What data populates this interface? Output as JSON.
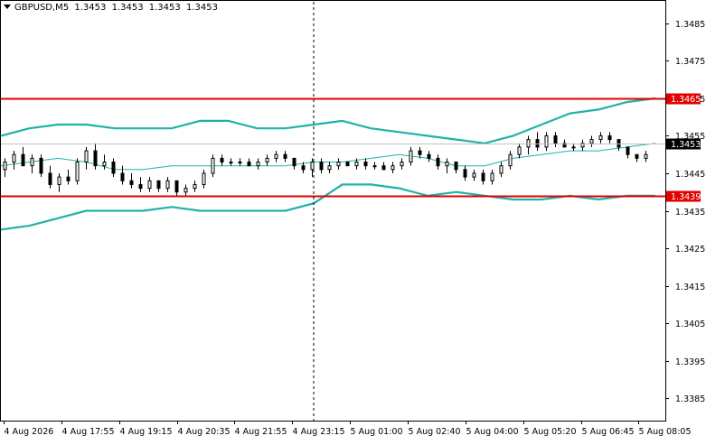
{
  "header": {
    "symbol": "GBPUSD,M5",
    "open": "1.3453",
    "high": "1.3453",
    "low": "1.3453",
    "close": "1.3453"
  },
  "colors": {
    "background": "#ffffff",
    "frame": "#000000",
    "grid": "#d7d7d7",
    "bollinger": "#20b2aa",
    "level_line": "#e00000",
    "candle": "#000000",
    "price_tag_bg": "#000000"
  },
  "chart_data": {
    "type": "candlestick",
    "title": "GBPUSD,M5",
    "price_axis_labels": [
      "1.3485",
      "1.3475",
      "1.3465",
      "1.3455",
      "1.3445",
      "1.3435",
      "1.3425",
      "1.3415",
      "1.3405",
      "1.3395",
      "1.3385"
    ],
    "ylim": [
      1.3379,
      1.3491
    ],
    "time_axis_labels": [
      "4 Aug 2026",
      "4 Aug 17:55",
      "4 Aug 19:15",
      "4 Aug 20:35",
      "4 Aug 21:55",
      "4 Aug 23:15",
      "5 Aug 01:00",
      "5 Aug 02:40",
      "5 Aug 04:00",
      "5 Aug 05:20",
      "5 Aug 06:45",
      "5 Aug 08:05"
    ],
    "grid": false,
    "levels": [
      {
        "label": "1.3465",
        "price": 1.3465
      },
      {
        "label": "1.3439",
        "price": 1.3439
      }
    ],
    "current_price": {
      "label": "1.3453",
      "price": 1.3453
    },
    "bollinger_bands": {
      "upper": [
        1.3455,
        1.3457,
        1.3458,
        1.3458,
        1.3457,
        1.3457,
        1.3457,
        1.3459,
        1.3459,
        1.3457,
        1.3457,
        1.3458,
        1.3459,
        1.3457,
        1.3456,
        1.3455,
        1.3454,
        1.3453,
        1.3455,
        1.3458,
        1.3461,
        1.3462,
        1.3464,
        1.3465
      ],
      "middle": [
        1.3447,
        1.3448,
        1.3449,
        1.3448,
        1.3446,
        1.3446,
        1.3447,
        1.3447,
        1.3447,
        1.3447,
        1.3447,
        1.3448,
        1.3448,
        1.3449,
        1.345,
        1.3449,
        1.3447,
        1.3447,
        1.3449,
        1.345,
        1.3451,
        1.3451,
        1.3452,
        1.3453
      ],
      "lower": [
        1.343,
        1.3431,
        1.3433,
        1.3435,
        1.3435,
        1.3435,
        1.3436,
        1.3435,
        1.3435,
        1.3435,
        1.3435,
        1.3437,
        1.3442,
        1.3442,
        1.3441,
        1.3439,
        1.344,
        1.3439,
        1.3438,
        1.3438,
        1.3439,
        1.3438,
        1.3439,
        1.3439
      ]
    },
    "candles": [
      [
        1.3446,
        1.3449,
        1.3444,
        1.3448
      ],
      [
        1.3448,
        1.3451,
        1.3446,
        1.345
      ],
      [
        1.345,
        1.3452,
        1.3447,
        1.3447
      ],
      [
        1.3447,
        1.345,
        1.3445,
        1.3449
      ],
      [
        1.3449,
        1.345,
        1.3444,
        1.3445
      ],
      [
        1.3445,
        1.3447,
        1.3441,
        1.3442
      ],
      [
        1.3442,
        1.3445,
        1.344,
        1.3444
      ],
      [
        1.3444,
        1.3446,
        1.3442,
        1.3443
      ],
      [
        1.3443,
        1.3449,
        1.3442,
        1.3448
      ],
      [
        1.3448,
        1.3452,
        1.3446,
        1.3451
      ],
      [
        1.3451,
        1.3453,
        1.3446,
        1.3447
      ],
      [
        1.3447,
        1.345,
        1.3446,
        1.3448
      ],
      [
        1.3448,
        1.3449,
        1.3444,
        1.3445
      ],
      [
        1.3445,
        1.3447,
        1.3442,
        1.3443
      ],
      [
        1.3443,
        1.3445,
        1.3441,
        1.3442
      ],
      [
        1.3442,
        1.3444,
        1.344,
        1.3441
      ],
      [
        1.3441,
        1.3444,
        1.344,
        1.3443
      ],
      [
        1.3443,
        1.3443,
        1.344,
        1.3441
      ],
      [
        1.3441,
        1.3444,
        1.344,
        1.3443
      ],
      [
        1.3443,
        1.3443,
        1.3439,
        1.344
      ],
      [
        1.344,
        1.3442,
        1.3439,
        1.3441
      ],
      [
        1.3441,
        1.3443,
        1.344,
        1.3442
      ],
      [
        1.3442,
        1.3446,
        1.3441,
        1.3445
      ],
      [
        1.3445,
        1.345,
        1.3444,
        1.3449
      ],
      [
        1.3449,
        1.345,
        1.3447,
        1.3448
      ],
      [
        1.3448,
        1.3449,
        1.3447,
        1.3448
      ],
      [
        1.3448,
        1.3449,
        1.3447,
        1.3448
      ],
      [
        1.3448,
        1.3449,
        1.3447,
        1.3447
      ],
      [
        1.3447,
        1.3449,
        1.3446,
        1.3448
      ],
      [
        1.3448,
        1.345,
        1.3447,
        1.3449
      ],
      [
        1.3449,
        1.3451,
        1.3448,
        1.345
      ],
      [
        1.345,
        1.3451,
        1.3448,
        1.3449
      ],
      [
        1.3449,
        1.3449,
        1.3446,
        1.3447
      ],
      [
        1.3447,
        1.3448,
        1.3445,
        1.3446
      ],
      [
        1.3446,
        1.3449,
        1.3444,
        1.3448
      ],
      [
        1.3448,
        1.3449,
        1.3445,
        1.3446
      ],
      [
        1.3446,
        1.3448,
        1.3445,
        1.3447
      ],
      [
        1.3447,
        1.3449,
        1.3446,
        1.3448
      ],
      [
        1.3448,
        1.3448,
        1.3447,
        1.3447
      ],
      [
        1.3447,
        1.3449,
        1.3446,
        1.3448
      ],
      [
        1.3448,
        1.3449,
        1.3446,
        1.3447
      ],
      [
        1.3447,
        1.3448,
        1.3446,
        1.3447
      ],
      [
        1.3447,
        1.3448,
        1.3446,
        1.3446
      ],
      [
        1.3446,
        1.3448,
        1.3445,
        1.3447
      ],
      [
        1.3447,
        1.3449,
        1.3446,
        1.3448
      ],
      [
        1.3448,
        1.3452,
        1.3447,
        1.3451
      ],
      [
        1.3451,
        1.3452,
        1.3449,
        1.345
      ],
      [
        1.345,
        1.3451,
        1.3448,
        1.3449
      ],
      [
        1.3449,
        1.345,
        1.3446,
        1.3447
      ],
      [
        1.3447,
        1.3449,
        1.3445,
        1.3448
      ],
      [
        1.3448,
        1.3448,
        1.3445,
        1.3446
      ],
      [
        1.3446,
        1.3447,
        1.3443,
        1.3444
      ],
      [
        1.3444,
        1.3446,
        1.3443,
        1.3445
      ],
      [
        1.3445,
        1.3446,
        1.3442,
        1.3443
      ],
      [
        1.3443,
        1.3446,
        1.3442,
        1.3445
      ],
      [
        1.3445,
        1.3448,
        1.3444,
        1.3447
      ],
      [
        1.3447,
        1.3451,
        1.3446,
        1.345
      ],
      [
        1.345,
        1.3453,
        1.3449,
        1.3452
      ],
      [
        1.3452,
        1.3455,
        1.345,
        1.3454
      ],
      [
        1.3454,
        1.3456,
        1.3451,
        1.3452
      ],
      [
        1.3452,
        1.3456,
        1.3451,
        1.3455
      ],
      [
        1.3455,
        1.3456,
        1.3452,
        1.3453
      ],
      [
        1.3453,
        1.3454,
        1.3452,
        1.3452
      ],
      [
        1.3452,
        1.3453,
        1.3451,
        1.3452
      ],
      [
        1.3452,
        1.3454,
        1.3451,
        1.3453
      ],
      [
        1.3453,
        1.3455,
        1.3452,
        1.3454
      ],
      [
        1.3454,
        1.3456,
        1.3453,
        1.3455
      ],
      [
        1.3455,
        1.3456,
        1.3453,
        1.3454
      ],
      [
        1.3454,
        1.3454,
        1.3451,
        1.3452
      ],
      [
        1.3452,
        1.3452,
        1.3449,
        1.345
      ],
      [
        1.345,
        1.345,
        1.3448,
        1.3449
      ],
      [
        1.3449,
        1.3451,
        1.3448,
        1.345
      ]
    ]
  }
}
